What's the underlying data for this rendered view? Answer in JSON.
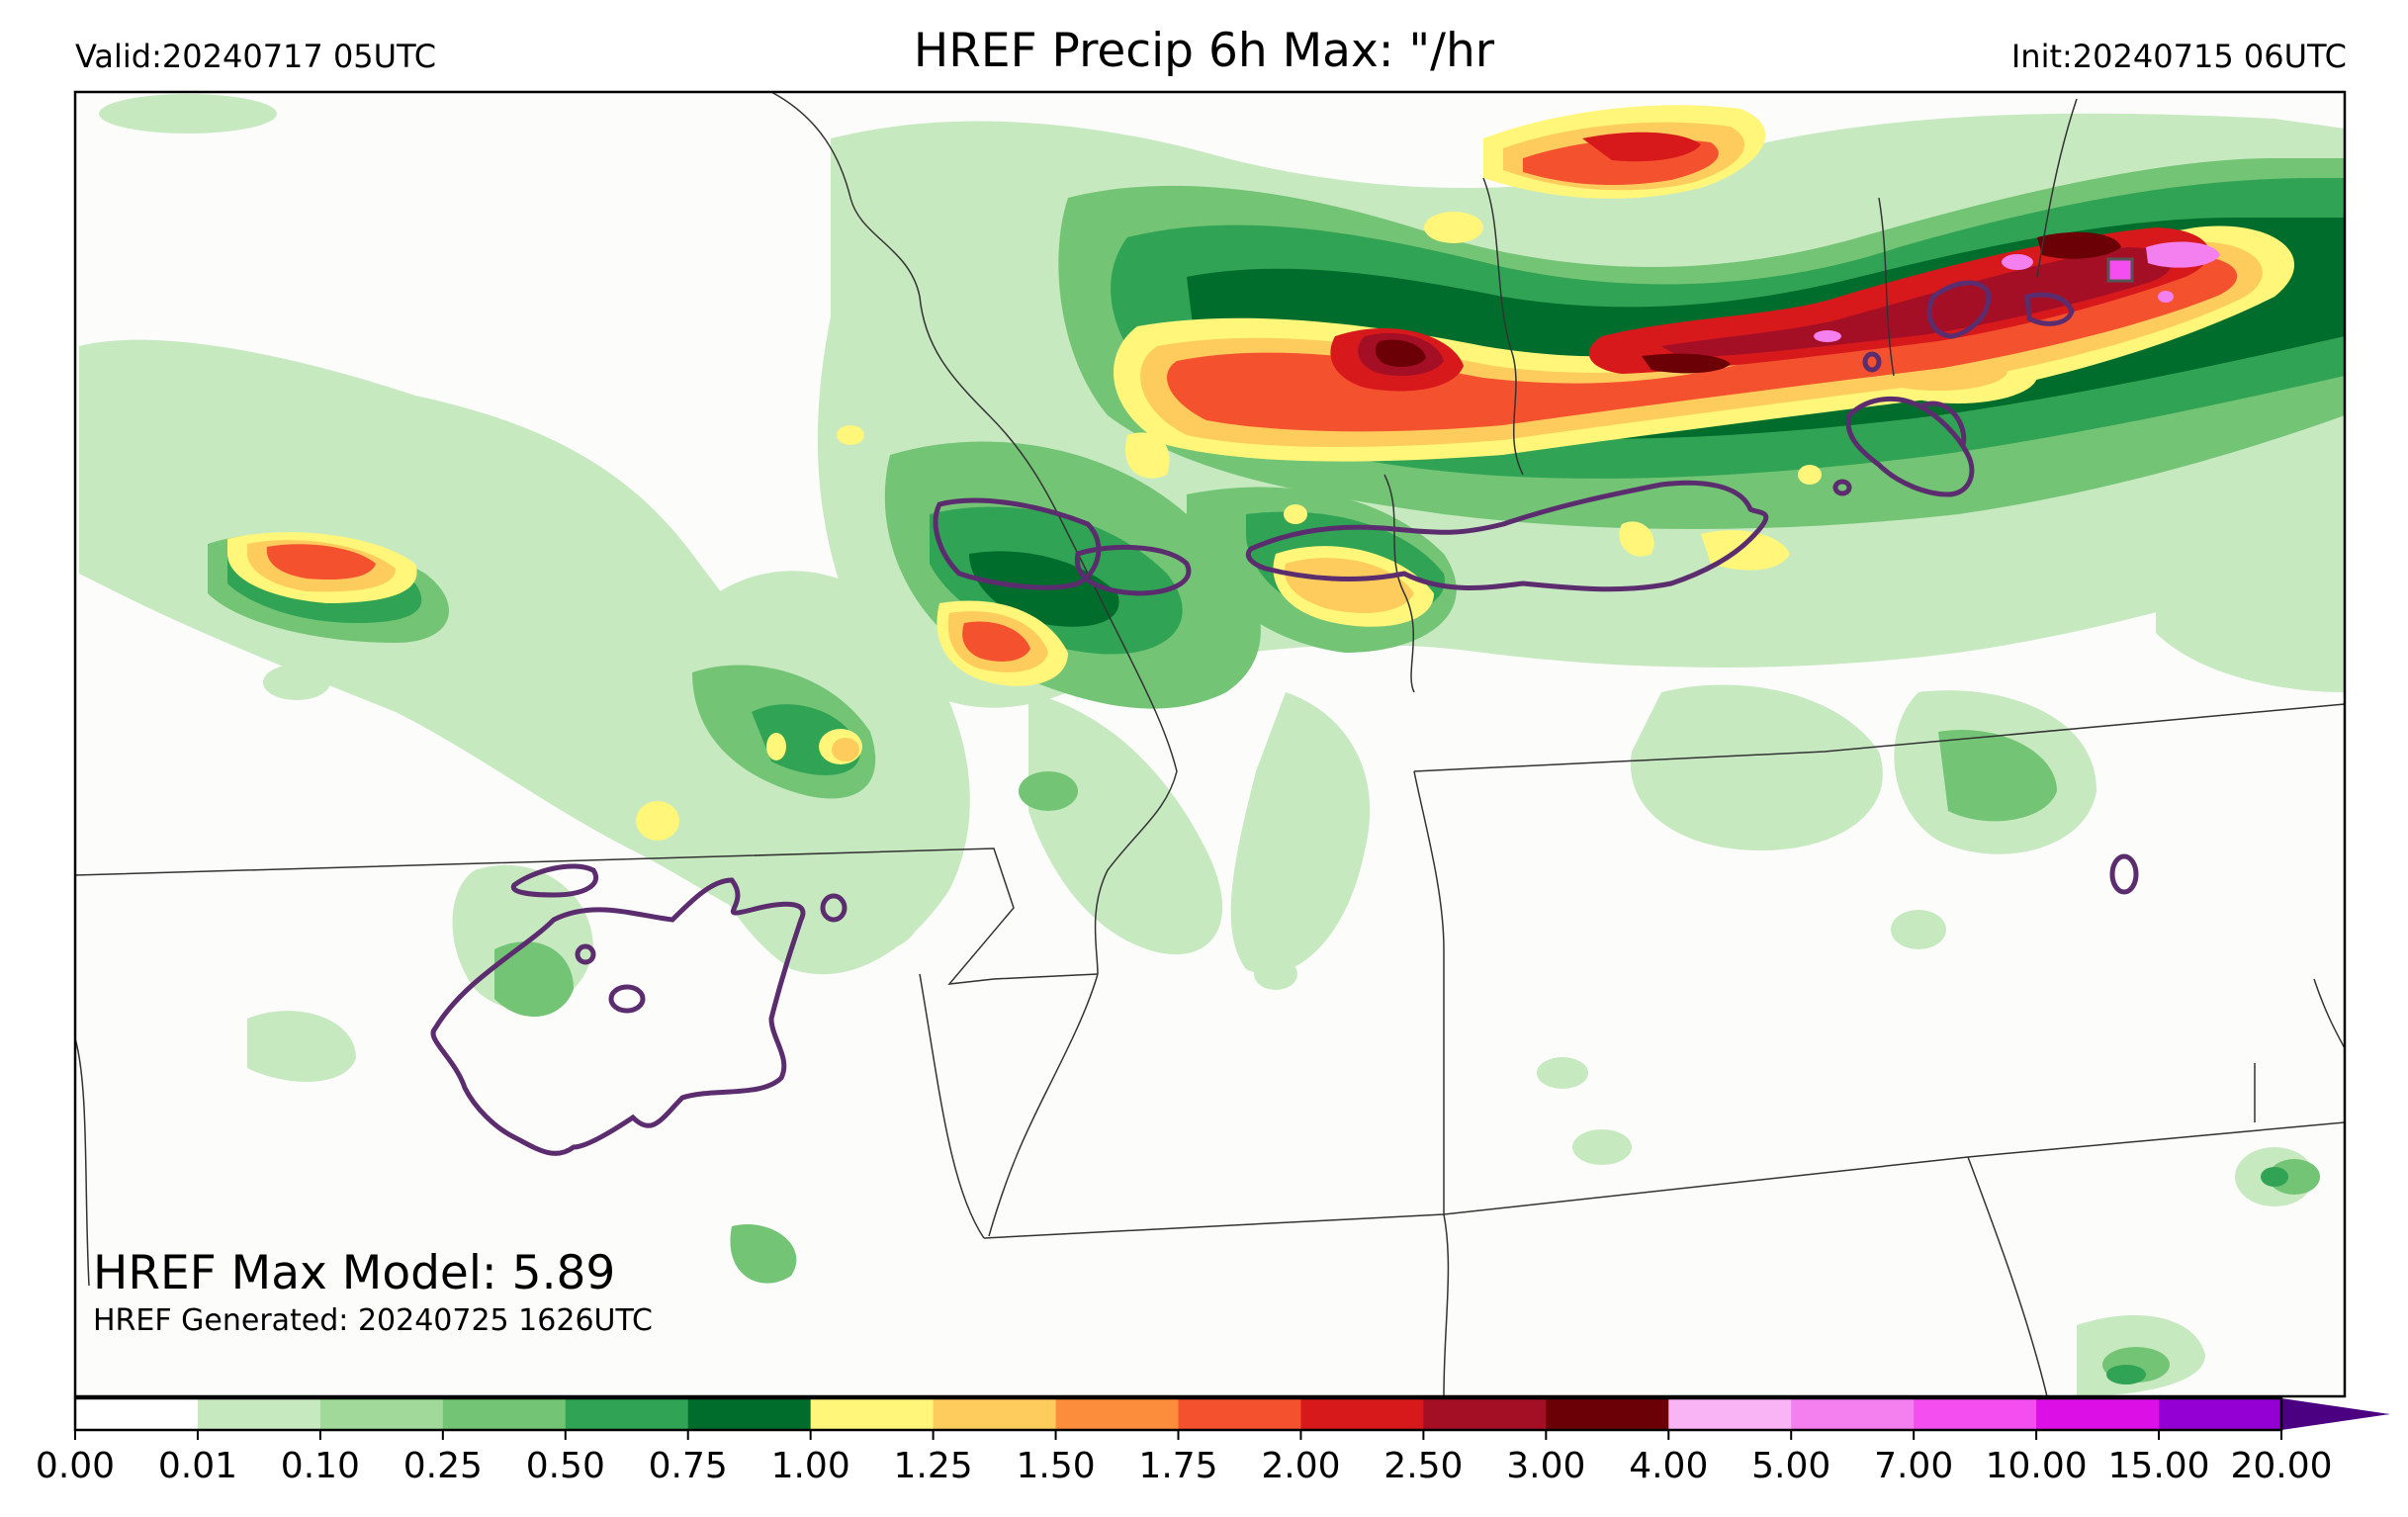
{
  "header": {
    "valid_label": "Valid:20240717 05UTC",
    "title": "HREF Precip 6h Max: \"/hr",
    "init_label": "Init:20240715 06UTC"
  },
  "annotations": {
    "max_model": "HREF Max Model: 5.89",
    "generated": "HREF Generated: 20240725 1626UTC"
  },
  "colorbar": {
    "ticks": [
      "0.00",
      "0.01",
      "0.10",
      "0.25",
      "0.50",
      "0.75",
      "1.00",
      "1.25",
      "1.50",
      "1.75",
      "2.00",
      "2.50",
      "3.00",
      "4.00",
      "5.00",
      "7.00",
      "10.00",
      "15.00",
      "20.00"
    ],
    "colors": [
      "#ffffff",
      "#c7e9c0",
      "#a1d99b",
      "#74c476",
      "#31a354",
      "#006d2c",
      "#fff67a",
      "#fdcc5c",
      "#fc8d3c",
      "#f4512f",
      "#d7191c",
      "#a50f26",
      "#6b0006",
      "#f8b4f4",
      "#f380ee",
      "#f54ef0",
      "#dc10e6",
      "#9400d3"
    ],
    "extend_color": "#4b0082"
  },
  "map_style": {
    "background": "#fcfcfb",
    "border_color": "#333333",
    "contour_color": "#5c2d6e"
  }
}
